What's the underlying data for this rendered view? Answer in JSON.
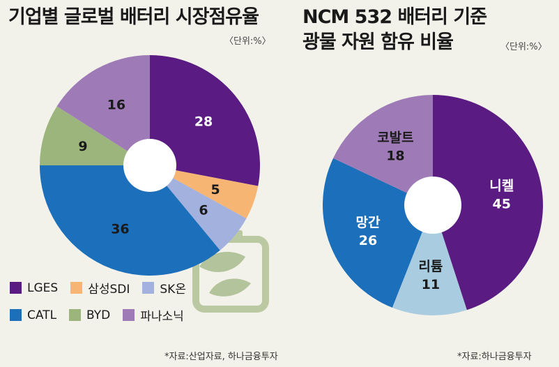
{
  "left_title": "기업별 글로벌 배터리 시장점유율",
  "left_unit": "〈단위:%〉",
  "right_title_line1": "NCM 532 배터리 기준",
  "right_title_line2": "광물 자원 함유 비율",
  "right_unit": "〈단위:%〉",
  "left_source": "*자료:산업자료, 하나금융투자",
  "right_source": "*자료:하나금융투자",
  "chart_data": [
    {
      "type": "pie",
      "title": "기업별 글로벌 배터리 시장점유율",
      "unit": "%",
      "slices": [
        {
          "name": "LGES",
          "value": 28,
          "color": "#5a1c82",
          "label_color": "#ffffff"
        },
        {
          "name": "삼성SDI",
          "value": 5,
          "color": "#f6b572",
          "label_color": "#1a1a1a"
        },
        {
          "name": "SK온",
          "value": 6,
          "color": "#a3b1de",
          "label_color": "#1a1a1a"
        },
        {
          "name": "CATL",
          "value": 36,
          "color": "#1c6fba",
          "label_color": "#1a1a1a"
        },
        {
          "name": "BYD",
          "value": 9,
          "color": "#9bb57d",
          "label_color": "#1a1a1a"
        },
        {
          "name": "파나소닉",
          "value": 16,
          "color": "#9e7bb6",
          "label_color": "#1a1a1a"
        }
      ],
      "legend": [
        "LGES",
        "삼성SDI",
        "SK온",
        "CATL",
        "BYD",
        "파나소닉"
      ],
      "legend_placement": "bottom-left"
    },
    {
      "type": "pie",
      "title": "NCM 532 배터리 기준 광물 자원 함유 비율",
      "unit": "%",
      "slices": [
        {
          "name": "니켈",
          "value": 45,
          "color": "#5a1c82",
          "label_color": "#ffffff"
        },
        {
          "name": "리튬",
          "value": 11,
          "color": "#a9cce0",
          "label_color": "#1a1a1a"
        },
        {
          "name": "망간",
          "value": 26,
          "color": "#1c6fba",
          "label_color": "#ffffff"
        },
        {
          "name": "코발트",
          "value": 18,
          "color": "#9e7bb6",
          "label_color": "#1a1a1a"
        }
      ]
    }
  ]
}
